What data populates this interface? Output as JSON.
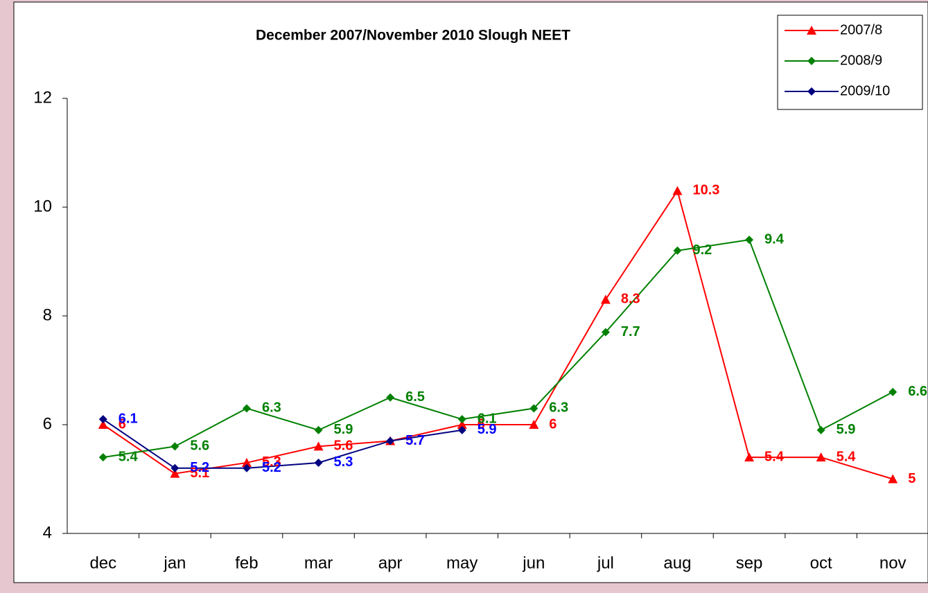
{
  "chart_data": {
    "type": "line",
    "title": "December 2007/November 2010 Slough NEET",
    "categories": [
      "dec",
      "jan",
      "feb",
      "mar",
      "apr",
      "may",
      "jun",
      "jul",
      "aug",
      "sep",
      "oct",
      "nov"
    ],
    "series": [
      {
        "name": "2007/8",
        "color": "#ff0000",
        "label_color": "#ff0000",
        "marker": "triangle",
        "values": [
          6,
          5.1,
          5.3,
          5.6,
          5.7,
          6,
          6,
          8.3,
          10.3,
          5.4,
          5.4,
          5
        ]
      },
      {
        "name": "2008/9",
        "color": "#008000",
        "label_color": "#008000",
        "marker": "diamond",
        "values": [
          5.4,
          5.6,
          6.3,
          5.9,
          6.5,
          6.1,
          6.3,
          7.7,
          9.2,
          9.4,
          5.9,
          6.6
        ]
      },
      {
        "name": "2009/10",
        "color": "#000080",
        "label_color": "#0000ff",
        "marker": "diamond",
        "values": [
          6.1,
          5.2,
          5.2,
          5.3,
          5.7,
          5.9,
          null,
          null,
          null,
          null,
          null,
          null
        ]
      }
    ],
    "ylim": [
      4,
      12
    ],
    "yticks": [
      4,
      6,
      8,
      10,
      12
    ],
    "grid": false,
    "legend": "top-right"
  }
}
